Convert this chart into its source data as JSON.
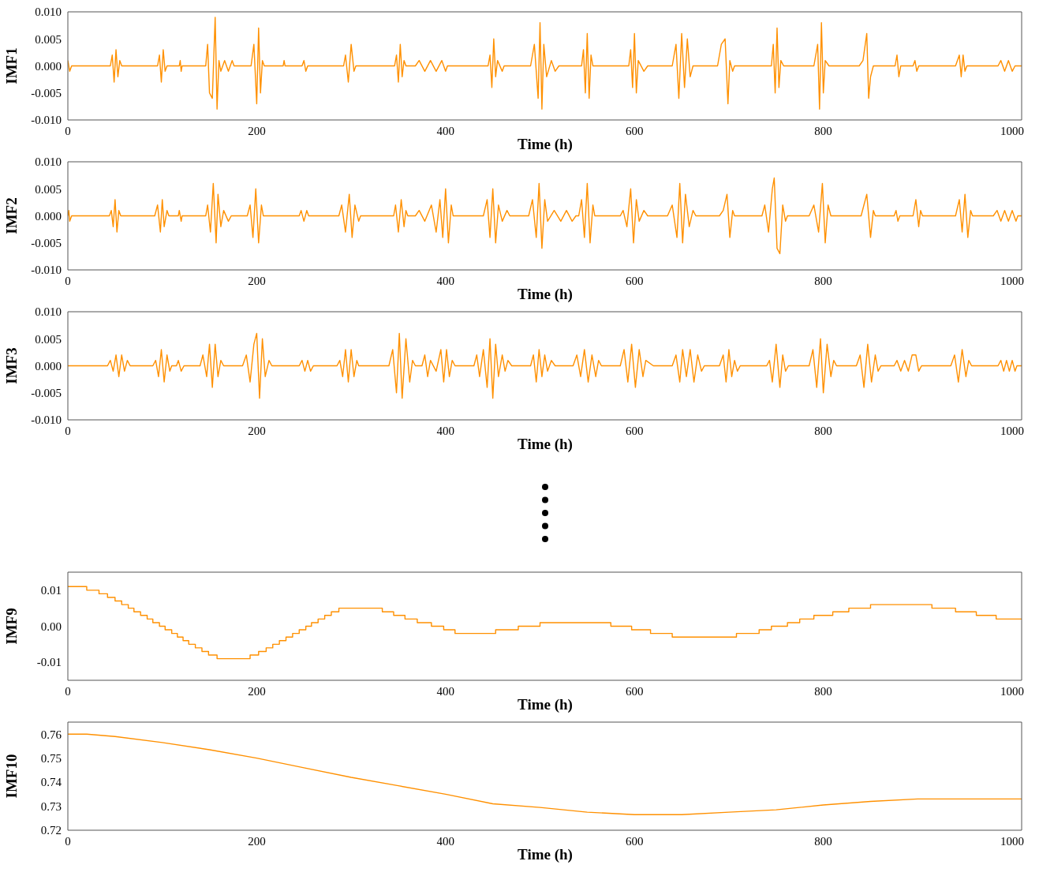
{
  "chart_data": [
    {
      "type": "line",
      "xlabel": "Time (h)",
      "ylabel": "IMF1",
      "xlim": [
        0,
        1010
      ],
      "xticks": [
        0,
        200,
        400,
        600,
        800,
        1000
      ],
      "ylim": [
        -0.01,
        0.01
      ],
      "yticks": [
        {
          "value": -0.01,
          "label": "-0.010"
        },
        {
          "value": -0.005,
          "label": "-0.005"
        },
        {
          "value": 0,
          "label": "0.000"
        },
        {
          "value": 0.005,
          "label": "0.005"
        },
        {
          "value": 0.01,
          "label": "0.010"
        }
      ],
      "x": [
        0,
        2,
        4,
        45,
        47,
        49,
        51,
        53,
        55,
        57,
        95,
        97,
        99,
        101,
        103,
        105,
        118,
        119,
        120,
        121,
        146,
        148,
        150,
        153,
        156,
        158,
        160,
        162,
        166,
        170,
        174,
        176,
        194,
        197,
        200,
        202,
        204,
        206,
        208,
        228,
        229,
        230,
        248,
        250,
        252,
        254,
        292,
        294,
        297,
        300,
        303,
        305,
        346,
        348,
        350,
        352,
        354,
        356,
        358,
        368,
        372,
        378,
        384,
        390,
        396,
        400,
        402,
        445,
        447,
        449,
        451,
        453,
        455,
        460,
        462,
        490,
        494,
        498,
        500,
        502,
        504,
        507,
        512,
        516,
        520,
        544,
        546,
        548,
        550,
        552,
        554,
        556,
        594,
        596,
        598,
        600,
        602,
        604,
        610,
        614,
        640,
        644,
        647,
        650,
        653,
        656,
        659,
        662,
        688,
        692,
        696,
        699,
        701,
        704,
        706,
        745,
        747,
        749,
        751,
        753,
        755,
        758,
        790,
        794,
        796,
        798,
        800,
        802,
        806,
        838,
        842,
        846,
        848,
        850,
        853,
        876,
        878,
        880,
        882,
        895,
        897,
        899,
        901,
        940,
        944,
        946,
        948,
        950,
        952,
        985,
        988,
        992,
        996,
        1000,
        1003,
        1010
      ],
      "series": [
        {
          "color": "#ff9000",
          "values": [
            0.001,
            -0.001,
            0,
            0,
            0.002,
            -0.003,
            0.003,
            -0.002,
            0.001,
            0,
            0,
            0.002,
            -0.003,
            0.003,
            -0.001,
            0,
            0,
            0.001,
            -0.001,
            0,
            0,
            0.004,
            -0.005,
            -0.006,
            0.009,
            -0.008,
            0.001,
            -0.001,
            0.001,
            -0.001,
            0.001,
            0,
            0,
            0.004,
            -0.007,
            0.007,
            -0.005,
            0.001,
            0,
            0,
            0.001,
            0,
            0,
            0.001,
            -0.001,
            0,
            0,
            0.002,
            -0.003,
            0.004,
            -0.001,
            0,
            0,
            0.002,
            -0.003,
            0.004,
            -0.002,
            0.001,
            0,
            0,
            0.001,
            -0.001,
            0.001,
            -0.001,
            0.001,
            -0.001,
            0,
            0,
            0.002,
            -0.004,
            0.005,
            -0.002,
            0.001,
            -0.001,
            0,
            0,
            0.004,
            -0.006,
            0.008,
            -0.008,
            0.004,
            -0.002,
            0.001,
            -0.001,
            0,
            0,
            0.003,
            -0.005,
            0.006,
            -0.006,
            0.002,
            0,
            0,
            0.003,
            -0.004,
            0.006,
            -0.005,
            0.001,
            -0.001,
            0,
            0,
            0.004,
            -0.006,
            0.006,
            -0.004,
            0.005,
            -0.002,
            0,
            0,
            0.004,
            0.005,
            -0.007,
            0.001,
            -0.001,
            0,
            0,
            0.004,
            -0.005,
            0.007,
            -0.004,
            0.001,
            0,
            0,
            0.004,
            -0.008,
            0.008,
            -0.005,
            0.001,
            0,
            0,
            0.001,
            0.006,
            -0.006,
            -0.002,
            0,
            0,
            0.002,
            -0.002,
            0,
            0,
            0.001,
            -0.001,
            0,
            0,
            0.002,
            -0.002,
            0.002,
            -0.001,
            0,
            0,
            0.001,
            -0.001,
            0.001,
            -0.001,
            0,
            0
          ]
        }
      ]
    },
    {
      "type": "line",
      "xlabel": "Time (h)",
      "ylabel": "IMF2",
      "xlim": [
        0,
        1010
      ],
      "xticks": [
        0,
        200,
        400,
        600,
        800,
        1000
      ],
      "ylim": [
        -0.01,
        0.01
      ],
      "yticks": [
        {
          "value": -0.01,
          "label": "-0.010"
        },
        {
          "value": -0.005,
          "label": "-0.005"
        },
        {
          "value": 0,
          "label": "0.000"
        },
        {
          "value": 0.005,
          "label": "0.005"
        },
        {
          "value": 0.01,
          "label": "0.010"
        }
      ],
      "x": [
        0,
        1,
        2,
        4,
        44,
        46,
        48,
        50,
        52,
        54,
        56,
        92,
        95,
        98,
        100,
        102,
        105,
        107,
        117,
        118,
        120,
        121,
        146,
        148,
        151,
        154,
        157,
        159,
        162,
        165,
        170,
        173,
        190,
        193,
        196,
        199,
        202,
        205,
        207,
        245,
        247,
        250,
        253,
        255,
        287,
        290,
        294,
        298,
        301,
        304,
        308,
        310,
        345,
        347,
        350,
        353,
        356,
        358,
        360,
        368,
        372,
        378,
        385,
        390,
        394,
        397,
        400,
        403,
        406,
        408,
        440,
        444,
        447,
        450,
        453,
        456,
        460,
        465,
        468,
        488,
        492,
        496,
        499,
        502,
        505,
        508,
        515,
        522,
        528,
        534,
        538,
        541,
        544,
        547,
        550,
        553,
        556,
        558,
        585,
        588,
        592,
        596,
        599,
        602,
        605,
        610,
        614,
        635,
        640,
        645,
        648,
        651,
        654,
        658,
        662,
        665,
        690,
        694,
        698,
        701,
        704,
        706,
        735,
        738,
        742,
        746,
        748,
        751,
        754,
        757,
        760,
        762,
        785,
        790,
        795,
        799,
        802,
        805,
        808,
        840,
        843,
        846,
        850,
        853,
        855,
        875,
        877,
        879,
        881,
        895,
        898,
        901,
        903,
        905,
        940,
        944,
        947,
        950,
        953,
        956,
        958,
        980,
        984,
        988,
        992,
        996,
        1000,
        1004,
        1006,
        1010
      ],
      "series": [
        {
          "color": "#ff9000",
          "values": [
            0,
            0.001,
            -0.001,
            0,
            0,
            0.001,
            -0.002,
            0.003,
            -0.003,
            0.001,
            0,
            0,
            0.002,
            -0.003,
            0.003,
            -0.002,
            0.001,
            0,
            0,
            0.001,
            -0.001,
            0,
            0,
            0.002,
            -0.003,
            0.006,
            -0.005,
            0.004,
            -0.002,
            0.001,
            -0.001,
            0,
            0,
            0.002,
            -0.004,
            0.005,
            -0.005,
            0.002,
            0,
            0,
            0.001,
            -0.001,
            0.001,
            0,
            0,
            0.002,
            -0.003,
            0.004,
            -0.004,
            0.002,
            -0.001,
            0,
            0,
            0.002,
            -0.003,
            0.003,
            -0.002,
            0.001,
            0,
            0,
            0.001,
            -0.001,
            0.002,
            -0.003,
            0.003,
            -0.004,
            0.005,
            -0.005,
            0.002,
            0,
            0,
            0.003,
            -0.004,
            0.005,
            -0.005,
            0.002,
            -0.001,
            0.001,
            0,
            0,
            0.003,
            -0.004,
            0.006,
            -0.006,
            0.003,
            -0.001,
            0.001,
            -0.001,
            0.001,
            -0.001,
            0,
            0,
            0.003,
            -0.004,
            0.006,
            -0.005,
            0.002,
            0,
            0,
            0.001,
            -0.002,
            0.005,
            -0.005,
            0.003,
            -0.001,
            0.001,
            0,
            0,
            0.002,
            -0.004,
            0.006,
            -0.005,
            0.004,
            -0.002,
            0.001,
            0,
            0,
            0.001,
            0.004,
            -0.004,
            0.001,
            0,
            0,
            0.002,
            -0.003,
            0.005,
            0.007,
            -0.006,
            -0.007,
            0.002,
            -0.001,
            0,
            0,
            0.002,
            -0.003,
            0.006,
            -0.005,
            0.002,
            0,
            0,
            0.002,
            0.004,
            -0.004,
            0.001,
            0,
            0,
            0.001,
            -0.001,
            0,
            0,
            0.003,
            -0.002,
            0.001,
            0,
            0,
            0.003,
            -0.003,
            0.004,
            -0.004,
            0.001,
            0,
            0,
            0.001,
            -0.001,
            0.001,
            -0.001,
            0.001,
            -0.001,
            0,
            0
          ]
        }
      ]
    },
    {
      "type": "line",
      "xlabel": "Time (h)",
      "ylabel": "IMF3",
      "xlim": [
        0,
        1010
      ],
      "xticks": [
        0,
        200,
        400,
        600,
        800,
        1000
      ],
      "ylim": [
        -0.01,
        0.01
      ],
      "yticks": [
        {
          "value": -0.01,
          "label": "-0.010"
        },
        {
          "value": -0.005,
          "label": "-0.005"
        },
        {
          "value": 0,
          "label": "0.000"
        },
        {
          "value": 0.005,
          "label": "0.005"
        },
        {
          "value": 0.01,
          "label": "0.010"
        }
      ],
      "x": [
        0,
        42,
        45,
        48,
        51,
        54,
        57,
        60,
        63,
        66,
        90,
        93,
        96,
        99,
        102,
        105,
        108,
        110,
        115,
        117,
        120,
        123,
        140,
        143,
        147,
        150,
        153,
        156,
        159,
        162,
        165,
        185,
        189,
        193,
        197,
        200,
        203,
        206,
        209,
        213,
        216,
        245,
        248,
        251,
        254,
        257,
        260,
        285,
        288,
        291,
        294,
        297,
        300,
        303,
        306,
        308,
        340,
        344,
        348,
        351,
        354,
        358,
        362,
        365,
        368,
        375,
        378,
        381,
        384,
        390,
        395,
        398,
        401,
        404,
        407,
        410,
        430,
        433,
        436,
        440,
        444,
        447,
        450,
        453,
        456,
        460,
        463,
        466,
        470,
        490,
        493,
        496,
        499,
        502,
        505,
        508,
        512,
        516,
        535,
        539,
        543,
        547,
        551,
        555,
        559,
        562,
        565,
        585,
        589,
        593,
        597,
        601,
        605,
        609,
        612,
        620,
        640,
        644,
        648,
        651,
        655,
        659,
        663,
        667,
        671,
        674,
        690,
        694,
        697,
        700,
        703,
        706,
        709,
        712,
        740,
        743,
        746,
        750,
        754,
        757,
        760,
        763,
        785,
        789,
        793,
        797,
        800,
        804,
        808,
        811,
        814,
        835,
        839,
        843,
        847,
        851,
        855,
        858,
        861,
        875,
        878,
        882,
        886,
        890,
        894,
        898,
        901,
        904,
        935,
        939,
        943,
        947,
        951,
        954,
        957,
        985,
        988,
        991,
        994,
        997,
        1000,
        1003,
        1005,
        1010
      ],
      "series": [
        {
          "color": "#ff9000",
          "values": [
            0,
            0,
            0.001,
            -0.001,
            0.002,
            -0.002,
            0.002,
            -0.001,
            0.001,
            0,
            0,
            0.001,
            -0.002,
            0.003,
            -0.003,
            0.002,
            -0.001,
            0,
            0,
            0.001,
            -0.001,
            0,
            0,
            0.002,
            -0.002,
            0.004,
            -0.004,
            0.004,
            -0.002,
            0.001,
            0,
            0,
            0.002,
            -0.003,
            0.004,
            0.006,
            -0.006,
            0.005,
            -0.002,
            0.001,
            0,
            0,
            0.001,
            -0.001,
            0.001,
            -0.001,
            0,
            0,
            0.001,
            -0.002,
            0.003,
            -0.003,
            0.003,
            -0.002,
            0.001,
            0,
            0,
            0.003,
            -0.005,
            0.006,
            -0.006,
            0.005,
            -0.003,
            0.001,
            0,
            0,
            0.002,
            -0.002,
            0.001,
            -0.001,
            0.003,
            -0.003,
            0.003,
            -0.002,
            0.001,
            0,
            0,
            0.002,
            -0.002,
            0.003,
            -0.004,
            0.005,
            -0.006,
            0.004,
            -0.002,
            0.002,
            -0.001,
            0.001,
            0,
            0,
            0.002,
            -0.003,
            0.003,
            -0.002,
            0.002,
            -0.001,
            0.001,
            0,
            0,
            0.002,
            -0.002,
            0.003,
            -0.003,
            0.002,
            -0.002,
            0.001,
            0,
            0,
            0.003,
            -0.003,
            0.004,
            -0.004,
            0.003,
            -0.002,
            0.001,
            0,
            0,
            0.002,
            -0.003,
            0.003,
            -0.002,
            0.003,
            -0.003,
            0.002,
            -0.001,
            0,
            0,
            0.002,
            -0.003,
            0.003,
            -0.002,
            0.001,
            -0.001,
            0,
            0,
            0.001,
            -0.003,
            0.004,
            -0.004,
            0.002,
            -0.001,
            0,
            0,
            0.003,
            -0.004,
            0.005,
            -0.005,
            0.004,
            -0.002,
            0.001,
            0,
            0,
            0.002,
            -0.004,
            0.004,
            -0.003,
            0.002,
            -0.001,
            0,
            0,
            0.001,
            -0.001,
            0.001,
            -0.001,
            0.002,
            0.002,
            -0.001,
            0,
            0,
            0.002,
            -0.003,
            0.003,
            -0.002,
            0.001,
            0,
            0,
            0.001,
            -0.001,
            0.001,
            -0.001,
            0.001,
            -0.001,
            0,
            0
          ]
        }
      ]
    },
    {
      "type": "step",
      "xlabel": "Time (h)",
      "ylabel": "IMF9",
      "xlim": [
        0,
        1010
      ],
      "xticks": [
        0,
        200,
        400,
        600,
        800,
        1000
      ],
      "ylim": [
        -0.015,
        0.015
      ],
      "yticks": [
        -0.01,
        {
          "value": 0,
          "label": "0.00"
        },
        0.01
      ],
      "x": [
        0,
        20,
        33,
        42,
        50,
        57,
        64,
        70,
        77,
        84,
        90,
        97,
        103,
        110,
        116,
        122,
        128,
        135,
        142,
        149,
        158,
        193,
        202,
        210,
        217,
        224,
        231,
        238,
        245,
        252,
        258,
        265,
        272,
        279,
        287,
        333,
        345,
        357,
        370,
        385,
        398,
        410,
        453,
        477,
        500,
        575,
        597,
        617,
        640,
        708,
        732,
        745,
        762,
        775,
        790,
        810,
        827,
        850,
        915,
        940,
        962,
        983,
        1010
      ],
      "series": [
        {
          "color": "#ff9000",
          "values": [
            0.011,
            0.01,
            0.009,
            0.008,
            0.007,
            0.006,
            0.005,
            0.004,
            0.003,
            0.002,
            0.001,
            0,
            -0.001,
            -0.002,
            -0.003,
            -0.004,
            -0.005,
            -0.006,
            -0.007,
            -0.008,
            -0.009,
            -0.008,
            -0.007,
            -0.006,
            -0.005,
            -0.004,
            -0.003,
            -0.002,
            -0.001,
            0,
            0.001,
            0.002,
            0.003,
            0.004,
            0.005,
            0.004,
            0.003,
            0.002,
            0.001,
            0,
            -0.001,
            -0.002,
            -0.001,
            0,
            0.001,
            0,
            -0.001,
            -0.002,
            -0.003,
            -0.002,
            -0.001,
            0,
            0.001,
            0.002,
            0.003,
            0.004,
            0.005,
            0.006,
            0.005,
            0.004,
            0.003,
            0.002,
            0.002
          ]
        }
      ]
    },
    {
      "type": "line",
      "xlabel": "Time (h)",
      "ylabel": "IMF10",
      "xlim": [
        0,
        1010
      ],
      "xticks": [
        0,
        200,
        400,
        600,
        800,
        1000
      ],
      "ylim": [
        0.72,
        0.765
      ],
      "yticks": [
        0.72,
        0.73,
        0.74,
        0.75,
        0.76
      ],
      "x": [
        0,
        20,
        50,
        100,
        150,
        200,
        250,
        300,
        350,
        400,
        450,
        500,
        550,
        600,
        650,
        700,
        750,
        800,
        850,
        900,
        950,
        1010
      ],
      "series": [
        {
          "color": "#ff9000",
          "values": [
            0.76,
            0.76,
            0.759,
            0.7565,
            0.7535,
            0.75,
            0.746,
            0.742,
            0.7385,
            0.735,
            0.731,
            0.7295,
            0.7275,
            0.7265,
            0.7265,
            0.7275,
            0.7285,
            0.7305,
            0.732,
            0.733,
            0.733,
            0.733
          ]
        }
      ]
    }
  ]
}
